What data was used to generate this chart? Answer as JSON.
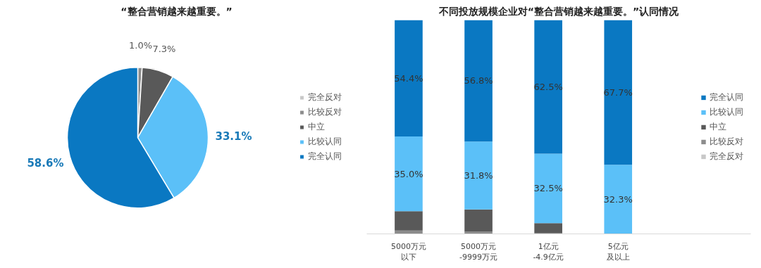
{
  "chart_data": [
    {
      "type": "pie",
      "title": "“整合营销越来越重要。”",
      "categories": [
        "完全反对",
        "比较反对",
        "中立",
        "比较认同",
        "完全认同"
      ],
      "values": [
        0,
        1.0,
        7.3,
        33.1,
        58.6
      ],
      "colors": [
        "#c8c8c8",
        "#8c8c8c",
        "#595959",
        "#5bc0f8",
        "#0a78c2"
      ],
      "value_labels": [
        null,
        "1.0%",
        "7.3%",
        "33.1%",
        "58.6%"
      ],
      "legend": "right"
    },
    {
      "type": "bar",
      "title": "不同投放规模企业对“整合营销越来越重要。”认同情况",
      "categories": [
        "5000万元以下",
        "5000万元-9999万元",
        "1亿元-4.9亿元",
        "5亿元及以上"
      ],
      "stacked": true,
      "ylim": [
        0,
        100
      ],
      "tick_labels": "x",
      "legend": "right",
      "series": [
        {
          "name": "完全反对",
          "color": "#c8c8c8",
          "values": [
            0,
            0,
            0,
            0
          ]
        },
        {
          "name": "比较反对",
          "color": "#8c8c8c",
          "values": [
            1.6,
            1.0,
            0.5,
            0
          ]
        },
        {
          "name": "中立",
          "color": "#595959",
          "values": [
            9.0,
            10.4,
            4.5,
            0
          ]
        },
        {
          "name": "比较认同",
          "color": "#5bc0f8",
          "values": [
            35.0,
            31.8,
            32.5,
            32.3
          ],
          "value_labels": [
            "35.0%",
            "31.8%",
            "32.5%",
            "32.3%"
          ]
        },
        {
          "name": "完全认同",
          "color": "#0a78c2",
          "values": [
            54.4,
            56.8,
            62.5,
            67.7
          ],
          "value_labels": [
            "54.4%",
            "56.8%",
            "62.5%",
            "67.7%"
          ]
        }
      ]
    }
  ]
}
